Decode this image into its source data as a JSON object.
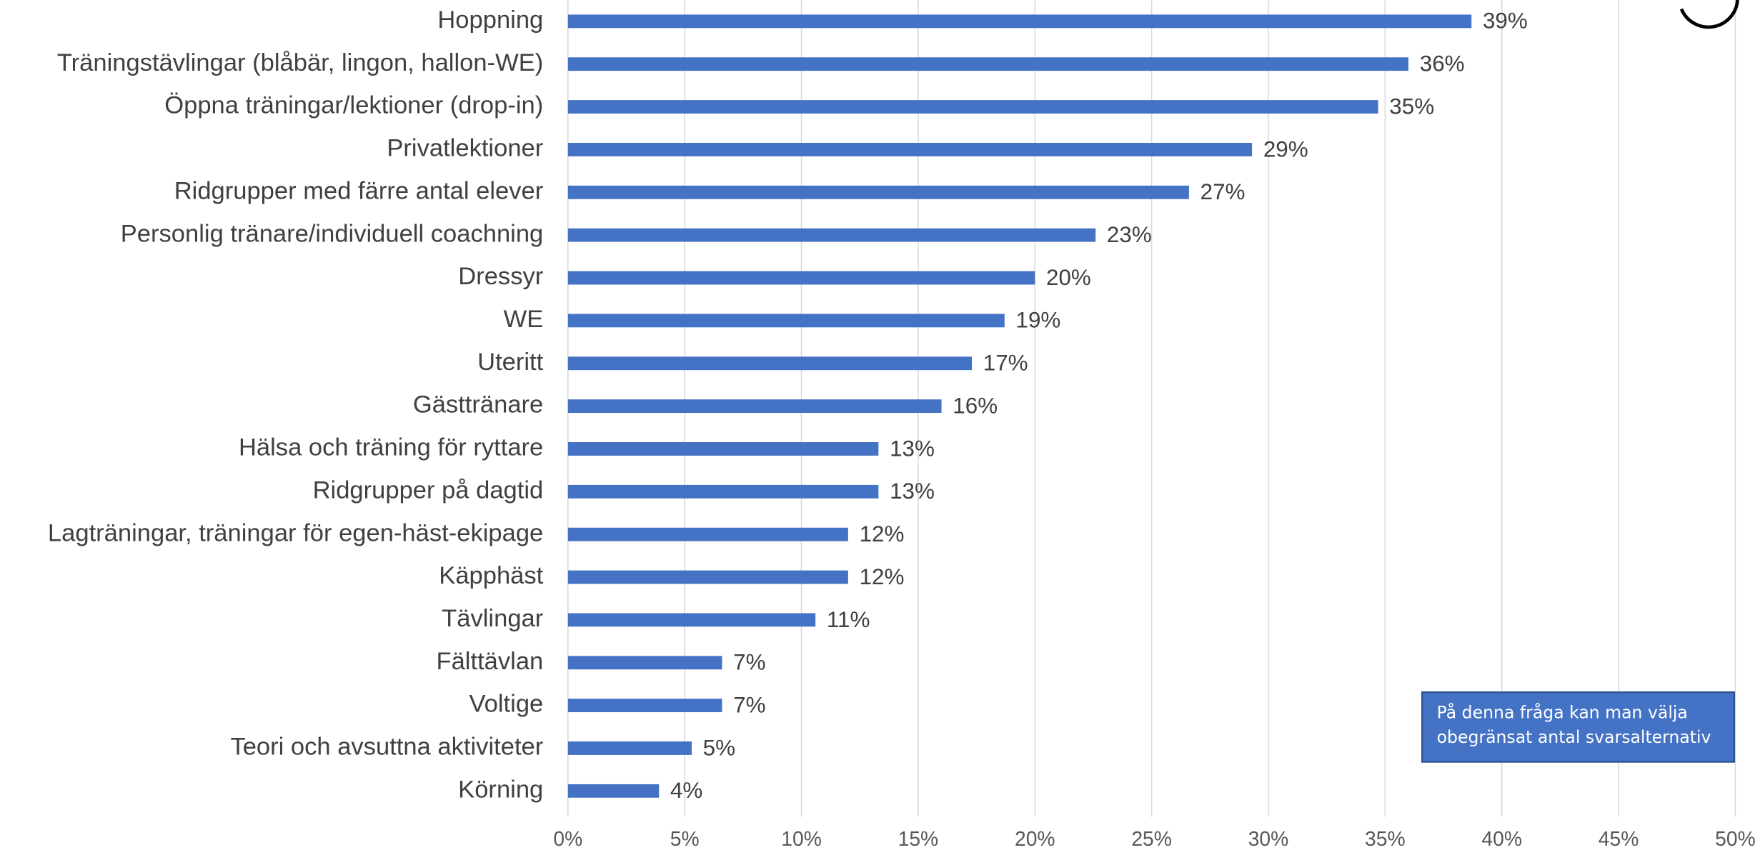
{
  "chart_data": {
    "type": "bar",
    "orientation": "horizontal",
    "categories": [
      "Hoppning",
      "Träningstävlingar (blåbär, lingon, hallon-WE)",
      "Öppna träningar/lektioner (drop-in)",
      "Privatlektioner",
      "Ridgrupper med färre antal elever",
      "Personlig tränare/individuell coachning",
      "Dressyr",
      "WE",
      "Uteritt",
      "Gästtränare",
      "Hälsa och träning för ryttare",
      "Ridgrupper på dagtid",
      "Lagträningar, träningar för egen-häst-ekipage",
      "Käpphäst",
      "Tävlingar",
      "Fälttävlan",
      "Voltige",
      "Teori och avsuttna aktiviteter",
      "Körning"
    ],
    "values": [
      38.7,
      36.0,
      34.7,
      29.3,
      26.6,
      22.6,
      20.0,
      18.7,
      17.3,
      16.0,
      13.3,
      13.3,
      12.0,
      12.0,
      10.6,
      6.6,
      6.6,
      5.3,
      3.9
    ],
    "value_labels": [
      "39%",
      "36%",
      "35%",
      "29%",
      "27%",
      "23%",
      "20%",
      "19%",
      "17%",
      "16%",
      "13%",
      "13%",
      "12%",
      "12%",
      "11%",
      "7%",
      "7%",
      "5%",
      "4%"
    ],
    "color": "#4472c4",
    "xlim": [
      0,
      50
    ],
    "xticks": [
      {
        "value": 0,
        "label": "0%"
      },
      {
        "value": 5,
        "label": "5%"
      },
      {
        "value": 10,
        "label": "10%"
      },
      {
        "value": 15,
        "label": "15%"
      },
      {
        "value": 20,
        "label": "20%"
      },
      {
        "value": 25,
        "label": "25%"
      },
      {
        "value": 30,
        "label": "30%"
      },
      {
        "value": 35,
        "label": "35%"
      },
      {
        "value": 40,
        "label": "40%"
      },
      {
        "value": 45,
        "label": "45%"
      },
      {
        "value": 50,
        "label": "50%"
      }
    ],
    "grid": true,
    "annotation": [
      "På denna fråga kan man välja",
      "obegränsat antal svarsalternativ"
    ]
  }
}
